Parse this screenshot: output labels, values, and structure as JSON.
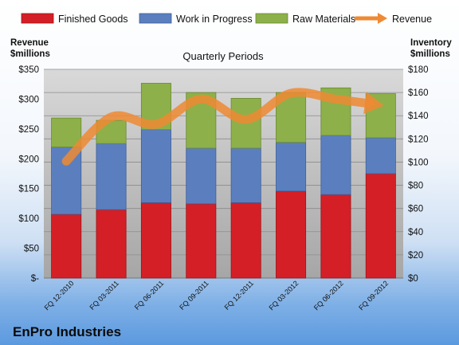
{
  "chart_data": {
    "type": "bar",
    "stacked": true,
    "title": "Quarterly Periods",
    "footer": "EnPro Industries",
    "categories": [
      "FQ 12-2010",
      "FQ 03-2011",
      "FQ 06-2011",
      "FQ 09-2011",
      "FQ 12-2011",
      "FQ 03-2012",
      "FQ 06-2012",
      "FQ 09-2012"
    ],
    "series": [
      {
        "name": "Finished Goods",
        "color": "#d41f26",
        "axis": "inventory",
        "values": [
          55,
          59,
          65,
          64,
          65,
          75,
          72,
          90
        ]
      },
      {
        "name": "Work in Progress",
        "color": "#5b7fbe",
        "axis": "inventory",
        "values": [
          58,
          57,
          63,
          48,
          47,
          42,
          51,
          31
        ]
      },
      {
        "name": "Raw Materials",
        "color": "#8db04a",
        "axis": "inventory",
        "values": [
          25,
          20,
          40,
          48,
          43,
          43,
          41,
          38
        ]
      }
    ],
    "line_series": {
      "name": "Revenue",
      "color": "#ee8a33",
      "axis": "revenue",
      "values": [
        196,
        270,
        258,
        300,
        266,
        310,
        300,
        290
      ]
    },
    "left_axis": {
      "label_line1": "Revenue",
      "label_line2": "$millions",
      "min": 0,
      "max": 350,
      "ticks": [
        "$-",
        "$50",
        "$100",
        "$150",
        "$200",
        "$250",
        "$300",
        "$350"
      ]
    },
    "right_axis": {
      "label_line1": "Inventory",
      "label_line2": "$millions",
      "min": 0,
      "max": 180,
      "ticks": [
        "$0",
        "$20",
        "$40",
        "$60",
        "$80",
        "$100",
        "$120",
        "$140",
        "$160",
        "$180"
      ]
    },
    "grid": true,
    "legend_position": "top"
  }
}
